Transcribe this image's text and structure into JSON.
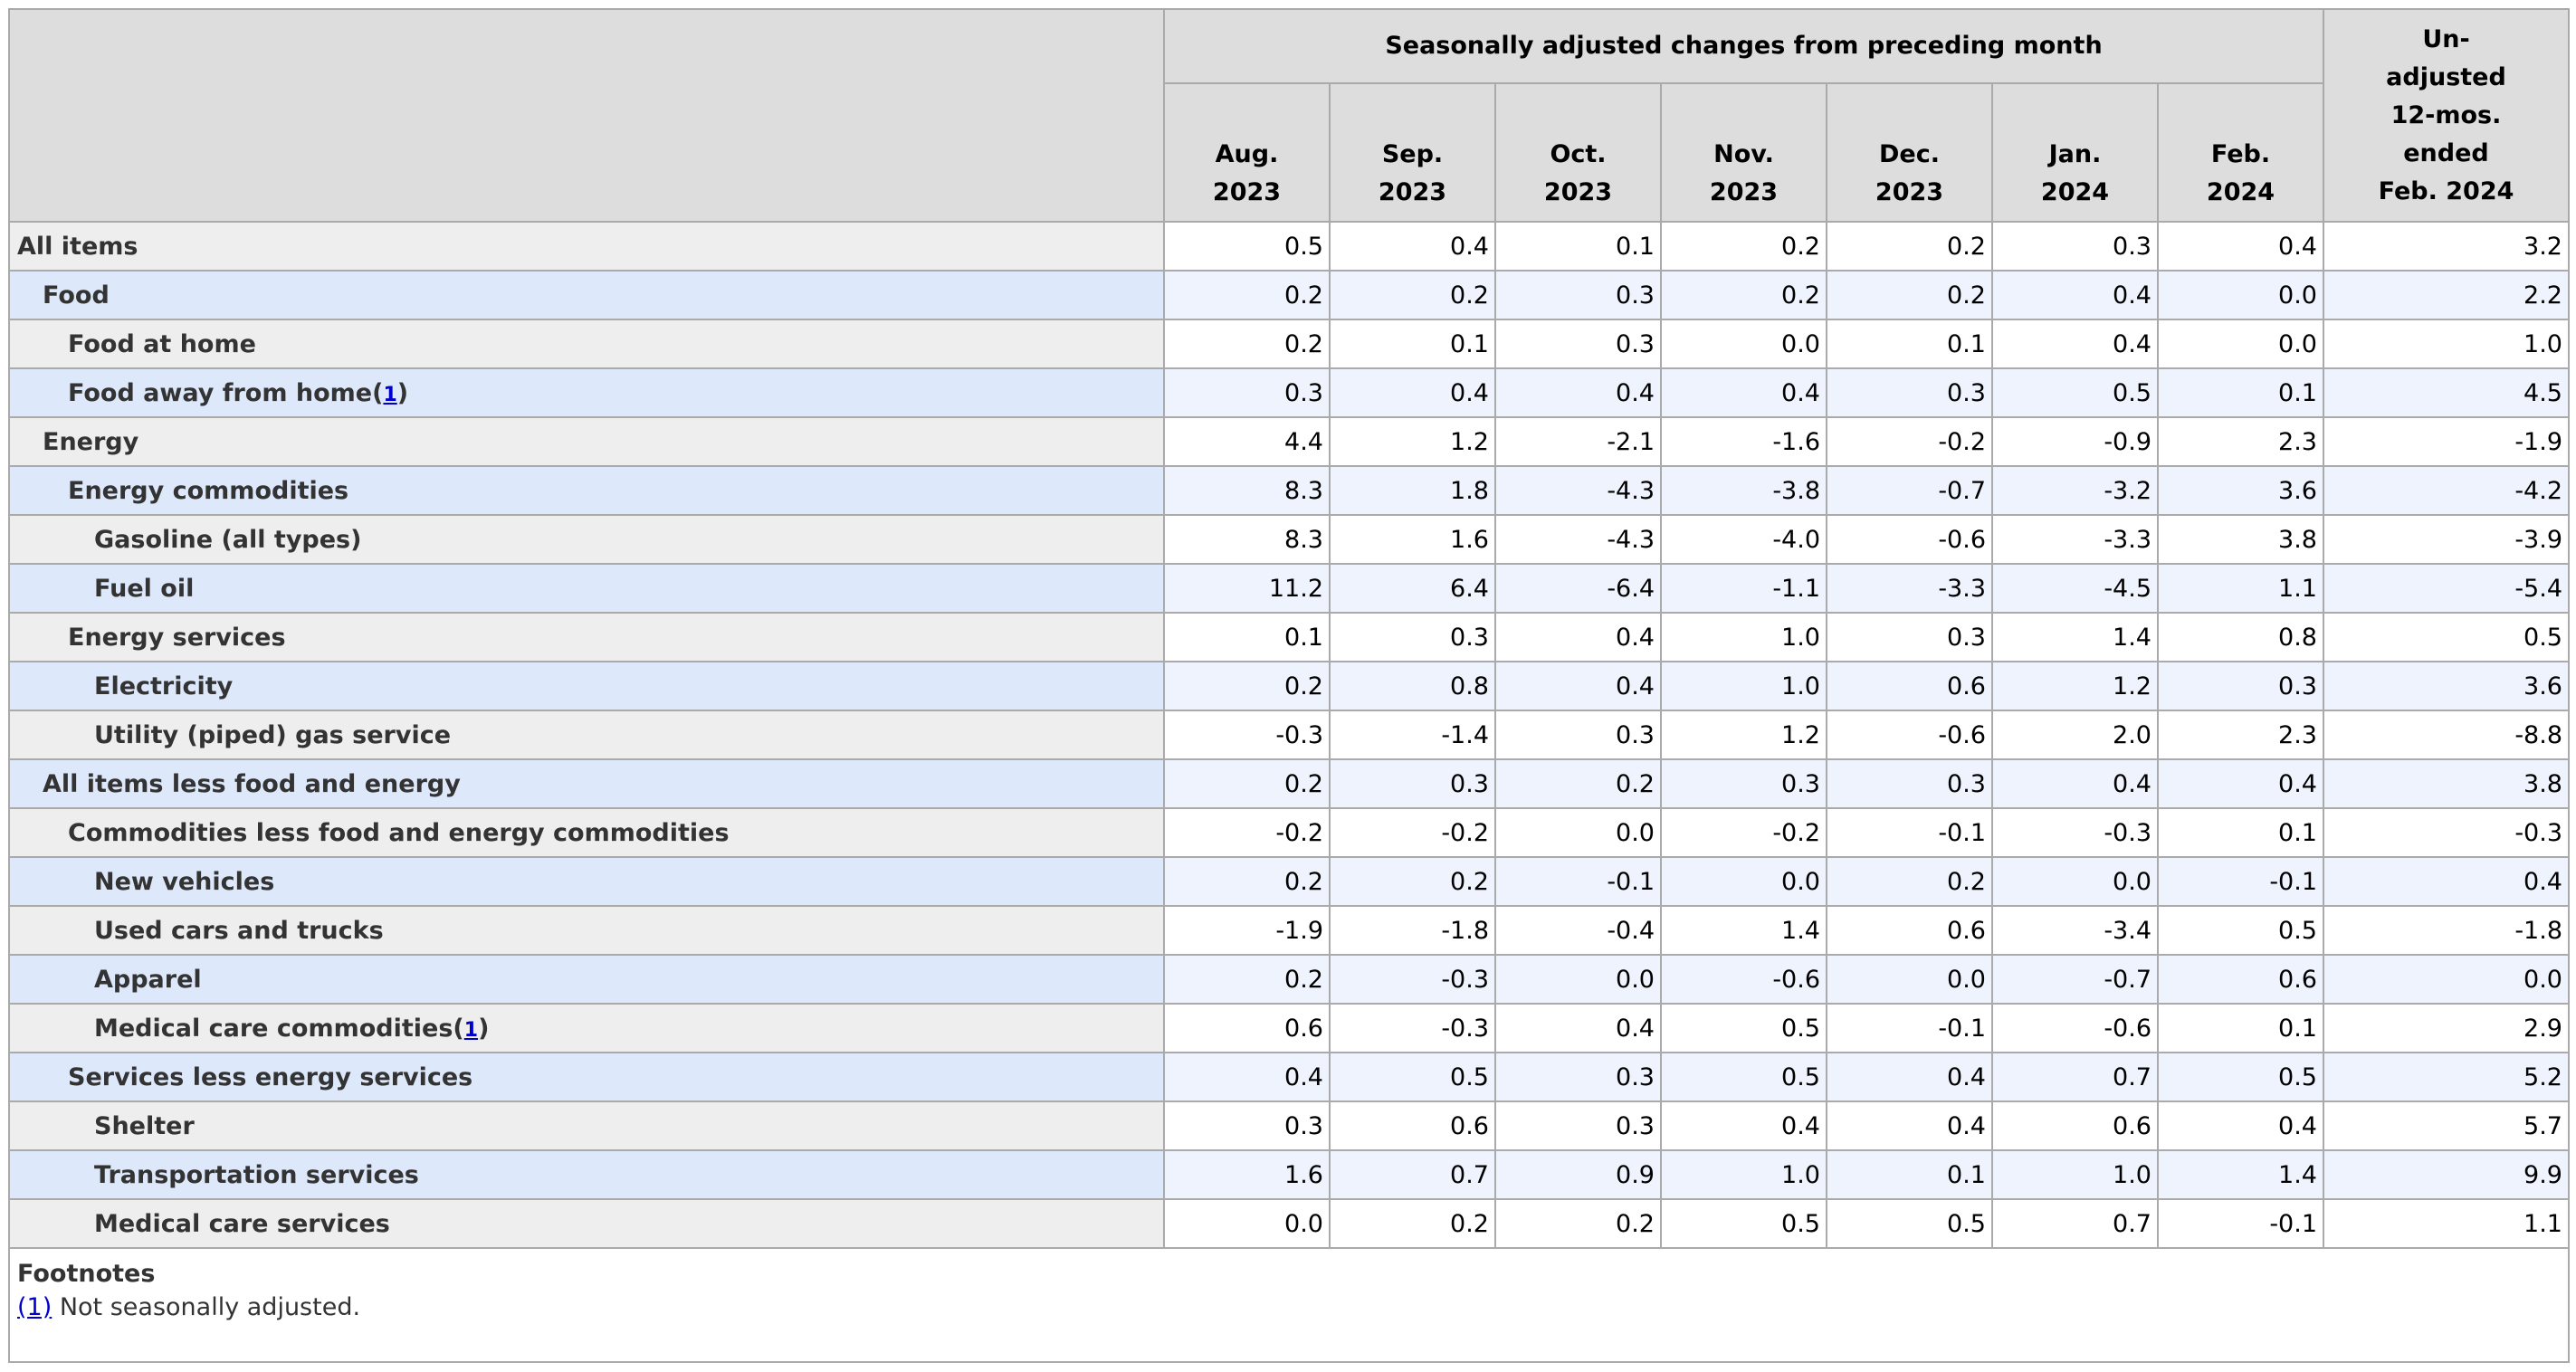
{
  "header": {
    "group_label": "Seasonally adjusted changes from preceding month",
    "unadjusted_label": "Un-\nadjusted\n12-mos.\nended\nFeb. 2024",
    "months": [
      {
        "month": "Aug.",
        "year": "2023"
      },
      {
        "month": "Sep.",
        "year": "2023"
      },
      {
        "month": "Oct.",
        "year": "2023"
      },
      {
        "month": "Nov.",
        "year": "2023"
      },
      {
        "month": "Dec.",
        "year": "2023"
      },
      {
        "month": "Jan.",
        "year": "2024"
      },
      {
        "month": "Feb.",
        "year": "2024"
      }
    ]
  },
  "rows": [
    {
      "label": "All items",
      "level": 0,
      "footnote": "",
      "values": [
        "0.5",
        "0.4",
        "0.1",
        "0.2",
        "0.2",
        "0.3",
        "0.4",
        "3.2"
      ]
    },
    {
      "label": "Food",
      "level": 1,
      "footnote": "",
      "values": [
        "0.2",
        "0.2",
        "0.3",
        "0.2",
        "0.2",
        "0.4",
        "0.0",
        "2.2"
      ]
    },
    {
      "label": "Food at home",
      "level": 2,
      "footnote": "",
      "values": [
        "0.2",
        "0.1",
        "0.3",
        "0.0",
        "0.1",
        "0.4",
        "0.0",
        "1.0"
      ]
    },
    {
      "label": "Food away from home",
      "level": 2,
      "footnote": "1",
      "values": [
        "0.3",
        "0.4",
        "0.4",
        "0.4",
        "0.3",
        "0.5",
        "0.1",
        "4.5"
      ]
    },
    {
      "label": "Energy",
      "level": 1,
      "footnote": "",
      "values": [
        "4.4",
        "1.2",
        "-2.1",
        "-1.6",
        "-0.2",
        "-0.9",
        "2.3",
        "-1.9"
      ]
    },
    {
      "label": "Energy commodities",
      "level": 2,
      "footnote": "",
      "values": [
        "8.3",
        "1.8",
        "-4.3",
        "-3.8",
        "-0.7",
        "-3.2",
        "3.6",
        "-4.2"
      ]
    },
    {
      "label": "Gasoline (all types)",
      "level": 3,
      "footnote": "",
      "values": [
        "8.3",
        "1.6",
        "-4.3",
        "-4.0",
        "-0.6",
        "-3.3",
        "3.8",
        "-3.9"
      ]
    },
    {
      "label": "Fuel oil",
      "level": 3,
      "footnote": "",
      "values": [
        "11.2",
        "6.4",
        "-6.4",
        "-1.1",
        "-3.3",
        "-4.5",
        "1.1",
        "-5.4"
      ]
    },
    {
      "label": "Energy services",
      "level": 2,
      "footnote": "",
      "values": [
        "0.1",
        "0.3",
        "0.4",
        "1.0",
        "0.3",
        "1.4",
        "0.8",
        "0.5"
      ]
    },
    {
      "label": "Electricity",
      "level": 3,
      "footnote": "",
      "values": [
        "0.2",
        "0.8",
        "0.4",
        "1.0",
        "0.6",
        "1.2",
        "0.3",
        "3.6"
      ]
    },
    {
      "label": "Utility (piped) gas service",
      "level": 3,
      "footnote": "",
      "values": [
        "-0.3",
        "-1.4",
        "0.3",
        "1.2",
        "-0.6",
        "2.0",
        "2.3",
        "-8.8"
      ]
    },
    {
      "label": "All items less food and energy",
      "level": 1,
      "footnote": "",
      "values": [
        "0.2",
        "0.3",
        "0.2",
        "0.3",
        "0.3",
        "0.4",
        "0.4",
        "3.8"
      ]
    },
    {
      "label": "Commodities less food and energy commodities",
      "level": 2,
      "footnote": "",
      "values": [
        "-0.2",
        "-0.2",
        "0.0",
        "-0.2",
        "-0.1",
        "-0.3",
        "0.1",
        "-0.3"
      ]
    },
    {
      "label": "New vehicles",
      "level": 3,
      "footnote": "",
      "values": [
        "0.2",
        "0.2",
        "-0.1",
        "0.0",
        "0.2",
        "0.0",
        "-0.1",
        "0.4"
      ]
    },
    {
      "label": "Used cars and trucks",
      "level": 3,
      "footnote": "",
      "values": [
        "-1.9",
        "-1.8",
        "-0.4",
        "1.4",
        "0.6",
        "-3.4",
        "0.5",
        "-1.8"
      ]
    },
    {
      "label": "Apparel",
      "level": 3,
      "footnote": "",
      "values": [
        "0.2",
        "-0.3",
        "0.0",
        "-0.6",
        "0.0",
        "-0.7",
        "0.6",
        "0.0"
      ]
    },
    {
      "label": "Medical care commodities",
      "level": 3,
      "footnote": "1",
      "values": [
        "0.6",
        "-0.3",
        "0.4",
        "0.5",
        "-0.1",
        "-0.6",
        "0.1",
        "2.9"
      ]
    },
    {
      "label": "Services less energy services",
      "level": 2,
      "footnote": "",
      "values": [
        "0.4",
        "0.5",
        "0.3",
        "0.5",
        "0.4",
        "0.7",
        "0.5",
        "5.2"
      ]
    },
    {
      "label": "Shelter",
      "level": 3,
      "footnote": "",
      "values": [
        "0.3",
        "0.6",
        "0.3",
        "0.4",
        "0.4",
        "0.6",
        "0.4",
        "5.7"
      ]
    },
    {
      "label": "Transportation services",
      "level": 3,
      "footnote": "",
      "values": [
        "1.6",
        "0.7",
        "0.9",
        "1.0",
        "0.1",
        "1.0",
        "1.4",
        "9.9"
      ]
    },
    {
      "label": "Medical care services",
      "level": 3,
      "footnote": "",
      "values": [
        "0.0",
        "0.2",
        "0.2",
        "0.5",
        "0.5",
        "0.7",
        "-0.1",
        "1.1"
      ]
    }
  ],
  "footnotes": {
    "title": "Footnotes",
    "items": [
      {
        "marker": "(1)",
        "text": "Not seasonally adjusted."
      }
    ]
  },
  "colors": {
    "header_bg": "#dddddd",
    "label_odd": "#eeeeee",
    "label_even": "#dde8fb",
    "cell_even": "#eef3fd",
    "link": "#0000cc"
  }
}
